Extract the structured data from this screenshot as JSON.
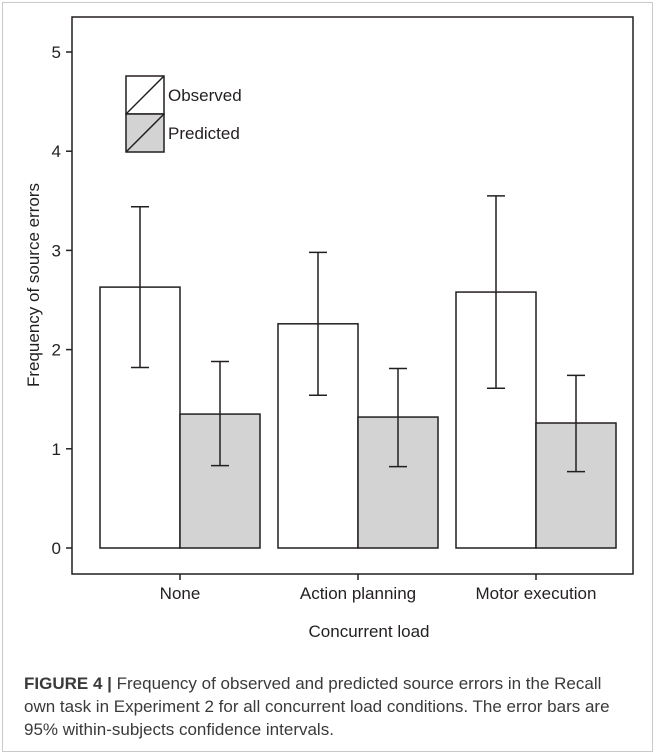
{
  "chart_data": {
    "type": "bar",
    "categories": [
      "None",
      "Action planning",
      "Motor execution"
    ],
    "series": [
      {
        "name": "Observed",
        "color": "#ffffff",
        "values": [
          2.63,
          2.26,
          2.58
        ],
        "ci_low": [
          1.82,
          1.54,
          1.61
        ],
        "ci_high": [
          3.44,
          2.98,
          3.55
        ]
      },
      {
        "name": "Predicted",
        "color": "#d3d3d3",
        "values": [
          1.35,
          1.32,
          1.26
        ],
        "ci_low": [
          0.83,
          0.82,
          0.77
        ],
        "ci_high": [
          1.88,
          1.81,
          1.74
        ]
      }
    ],
    "xlabel": "Concurrent load",
    "ylabel": "Frequency of source errors",
    "ylim": [
      0,
      5
    ],
    "yticks": [
      0,
      1,
      2,
      3,
      4,
      5
    ],
    "legend": "top-left",
    "grid": false
  },
  "caption": {
    "label": "FIGURE 4 |",
    "text": " Frequency of observed and predicted source errors in the Recall own task in Experiment 2 for all concurrent load conditions. The error bars are 95% within-subjects confidence intervals."
  }
}
